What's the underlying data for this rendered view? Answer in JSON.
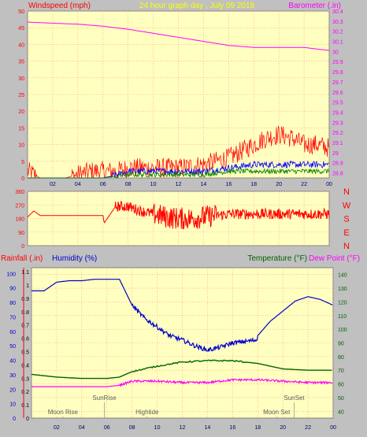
{
  "colors": {
    "background": "#c0c0c0",
    "plot_bg": "#ffffc0",
    "grid": "#ff9090",
    "windspeed": "#ff0000",
    "gust": "#ff0000",
    "wind_avg": "#0000ff",
    "wind_low": "#008000",
    "barometer": "#ff00ff",
    "direction": "#ff0000",
    "humidity": "#0000cc",
    "temperature": "#006400",
    "dewpoint": "#ff00ff",
    "rainfall": "#ff0000",
    "title": "#ffff00",
    "astro_text": "#606060"
  },
  "header": {
    "windspeed_label": "Windspeed (mph)",
    "title": "24 hour graph day , July 09 2018",
    "barometer_label": "Barometer (.in)"
  },
  "time_ticks": [
    "02",
    "04",
    "06",
    "08",
    "10",
    "12",
    "14",
    "16",
    "18",
    "20",
    "22",
    "00"
  ],
  "wind_panel": {
    "y_ticks": [
      "0",
      "5",
      "10",
      "15",
      "20",
      "25",
      "30",
      "35",
      "40",
      "45",
      "50"
    ],
    "ylim": [
      0,
      50
    ],
    "baro_ticks": [
      "28.8",
      "28.9",
      "29",
      "29.1",
      "29.2",
      "29.3",
      "29.4",
      "29.5",
      "29.6",
      "29.7",
      "29.8",
      "29.9",
      "30",
      "30.1",
      "30.2",
      "30.3",
      "30.4"
    ],
    "baro_lim": [
      28.75,
      30.4
    ]
  },
  "direction_panel": {
    "y_ticks": [
      "0",
      "90",
      "180",
      "270",
      "360"
    ],
    "compass": [
      "N",
      "W",
      "S",
      "E",
      "N"
    ]
  },
  "lower_panel": {
    "rainfall_label": "Rainfall (.in)",
    "humidity_label": "Humidity (%)",
    "temperature_label": "Temperature (°F)",
    "dewpoint_label": "Dew Point (°F)",
    "rain_ticks": [
      "0",
      "0.1",
      "0.2",
      "0.3",
      "0.4",
      "0.5",
      "0.6",
      "0.7",
      "0.8",
      "0.9",
      "1",
      "1.1"
    ],
    "hum_ticks": [
      "0",
      "10",
      "20",
      "30",
      "40",
      "50",
      "60",
      "70",
      "80",
      "90",
      "100"
    ],
    "temp_ticks": [
      "40",
      "50",
      "60",
      "70",
      "80",
      "90",
      "100",
      "110",
      "120",
      "130",
      "140"
    ],
    "temp_lim": [
      35,
      145
    ],
    "astro": [
      {
        "label": "Moon Rise",
        "x": 2.5,
        "row": 2
      },
      {
        "label": "SunRise",
        "x": 5.8,
        "row": 1
      },
      {
        "label": "Hightide",
        "x": 9.2,
        "row": 2
      },
      {
        "label": "Moon Set",
        "x": 19.5,
        "row": 2
      },
      {
        "label": "SunSet",
        "x": 20.9,
        "row": 1
      }
    ]
  },
  "chart_data": [
    {
      "type": "line",
      "title": "24 hour graph day , July 09 2018",
      "x_range": [
        0,
        24
      ],
      "ylabel": "Windspeed (mph)",
      "ylim": [
        0,
        50
      ],
      "y2label": "Barometer (.in)",
      "y2lim": [
        28.75,
        30.4
      ],
      "series": [
        {
          "axis": "y2",
          "x": [
            0,
            2,
            4,
            6,
            8,
            10,
            12,
            14,
            16,
            18,
            20,
            22,
            24
          ],
          "values": [
            30.29,
            30.28,
            30.27,
            30.25,
            30.22,
            30.18,
            30.14,
            30.1,
            30.06,
            30.04,
            30.04,
            30.04,
            30.01
          ]
        },
        {
          "axis": "y",
          "x": [
            0,
            0.5,
            1,
            3,
            5,
            7.2,
            8,
            10,
            12,
            14,
            16,
            17,
            18,
            19,
            20,
            21,
            22,
            23,
            24
          ],
          "values": [
            2,
            1,
            0,
            0,
            2,
            2,
            3,
            3,
            3,
            4,
            6,
            8,
            10,
            12,
            13,
            12,
            10,
            10,
            9
          ]
        },
        {
          "axis": "y",
          "x": [
            0,
            2,
            4,
            6,
            7.2,
            8,
            10,
            12,
            14,
            16,
            18,
            20,
            22,
            24
          ],
          "values": [
            0,
            0,
            0,
            0,
            1,
            2,
            2,
            2,
            2,
            3,
            4,
            4,
            4,
            4
          ]
        },
        {
          "axis": "y",
          "x": [
            0,
            6,
            8,
            10,
            12,
            14,
            16,
            18,
            20,
            22,
            24
          ],
          "values": [
            0,
            0,
            1,
            1,
            1,
            1,
            2,
            2,
            2,
            2,
            2
          ]
        }
      ]
    },
    {
      "type": "scatter",
      "x_range": [
        0,
        24
      ],
      "ylim": [
        0,
        360
      ],
      "series": [
        {
          "x": [
            0,
            0.5,
            1,
            2,
            3,
            4,
            5,
            6,
            6.1,
            7,
            8,
            9,
            10,
            11,
            12,
            13,
            14,
            15,
            16,
            18,
            20,
            22,
            24
          ],
          "values": [
            190,
            230,
            200,
            200,
            200,
            200,
            200,
            200,
            150,
            260,
            260,
            230,
            210,
            190,
            180,
            180,
            190,
            200,
            210,
            210,
            210,
            210,
            210
          ]
        }
      ]
    },
    {
      "type": "line",
      "x_range": [
        0,
        24
      ],
      "ylabel": "Humidity (%)",
      "ylim": [
        0,
        100
      ],
      "y2label": "Temperature (°F)",
      "y2lim": [
        35,
        145
      ],
      "series": [
        {
          "axis": "y",
          "x": [
            0,
            1,
            2,
            3,
            4,
            5,
            6,
            7,
            8,
            9,
            10,
            11,
            12,
            13,
            14,
            15,
            16,
            17,
            17.9,
            18,
            19,
            20,
            21,
            22,
            23,
            24
          ],
          "values": [
            88,
            88,
            94,
            95,
            95,
            96,
            96,
            96,
            78,
            69,
            63,
            57,
            54,
            50,
            47,
            49,
            52,
            53,
            54,
            57,
            67,
            74,
            81,
            84,
            82,
            78
          ]
        },
        {
          "axis": "y2",
          "x": [
            0,
            2,
            4,
            6,
            7,
            8,
            10,
            12,
            14,
            16,
            18,
            20,
            22,
            24
          ],
          "values": [
            67,
            65,
            64,
            64,
            65,
            69,
            73,
            76,
            77,
            77,
            75,
            71,
            70,
            70
          ]
        },
        {
          "axis": "y2",
          "x": [
            0,
            2,
            4,
            6,
            7,
            8,
            10,
            12,
            14,
            16,
            18,
            20,
            22,
            24
          ],
          "values": [
            58,
            58,
            58,
            58,
            59,
            62,
            62,
            61,
            61,
            63,
            63,
            62,
            61,
            61
          ]
        }
      ]
    }
  ]
}
